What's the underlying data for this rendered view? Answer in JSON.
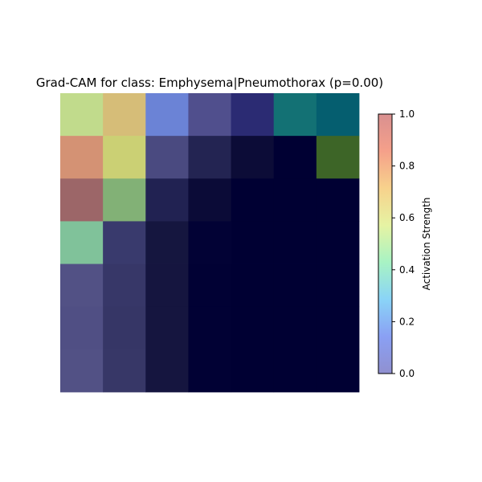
{
  "chart_data": {
    "type": "heatmap",
    "title": "Grad-CAM for class: Emphysema|Pneumothorax (p=0.00)",
    "rows": 7,
    "cols": 7,
    "cell_colors": [
      [
        "#c1db8c",
        "#d6bd78",
        "#6b83d6",
        "#504f8d",
        "#2b2b73",
        "#137174",
        "#055e6f"
      ],
      [
        "#d49274",
        "#cbd074",
        "#4a4a80",
        "#232452",
        "#0c0c37",
        "#000033",
        "#3d6527"
      ],
      [
        "#9c6668",
        "#82b176",
        "#212252",
        "#0b0b37",
        "#000033",
        "#000033",
        "#000033"
      ],
      [
        "#80c29a",
        "#393a6d",
        "#15163f",
        "#020235",
        "#000033",
        "#000033",
        "#000033"
      ],
      [
        "#525185",
        "#373768",
        "#15153f",
        "#010134",
        "#000033",
        "#000033",
        "#000033"
      ],
      [
        "#504f84",
        "#363666",
        "#15153f",
        "#010134",
        "#000033",
        "#000033",
        "#000033"
      ],
      [
        "#525185",
        "#373767",
        "#15153f",
        "#010134",
        "#000033",
        "#000033",
        "#000033"
      ]
    ],
    "colorbar": {
      "label": "Activation Strength",
      "ticks": [
        "0.0",
        "0.2",
        "0.4",
        "0.6",
        "0.8",
        "1.0"
      ],
      "range": [
        0.0,
        1.0
      ],
      "gradient_stops": [
        "#9090d0",
        "#8aa0f4",
        "#8ad4f7",
        "#a8f3c4",
        "#e6f3a3",
        "#f7d28c",
        "#f5a08a",
        "#d99090"
      ]
    },
    "grid": false,
    "axes_visible": false
  }
}
